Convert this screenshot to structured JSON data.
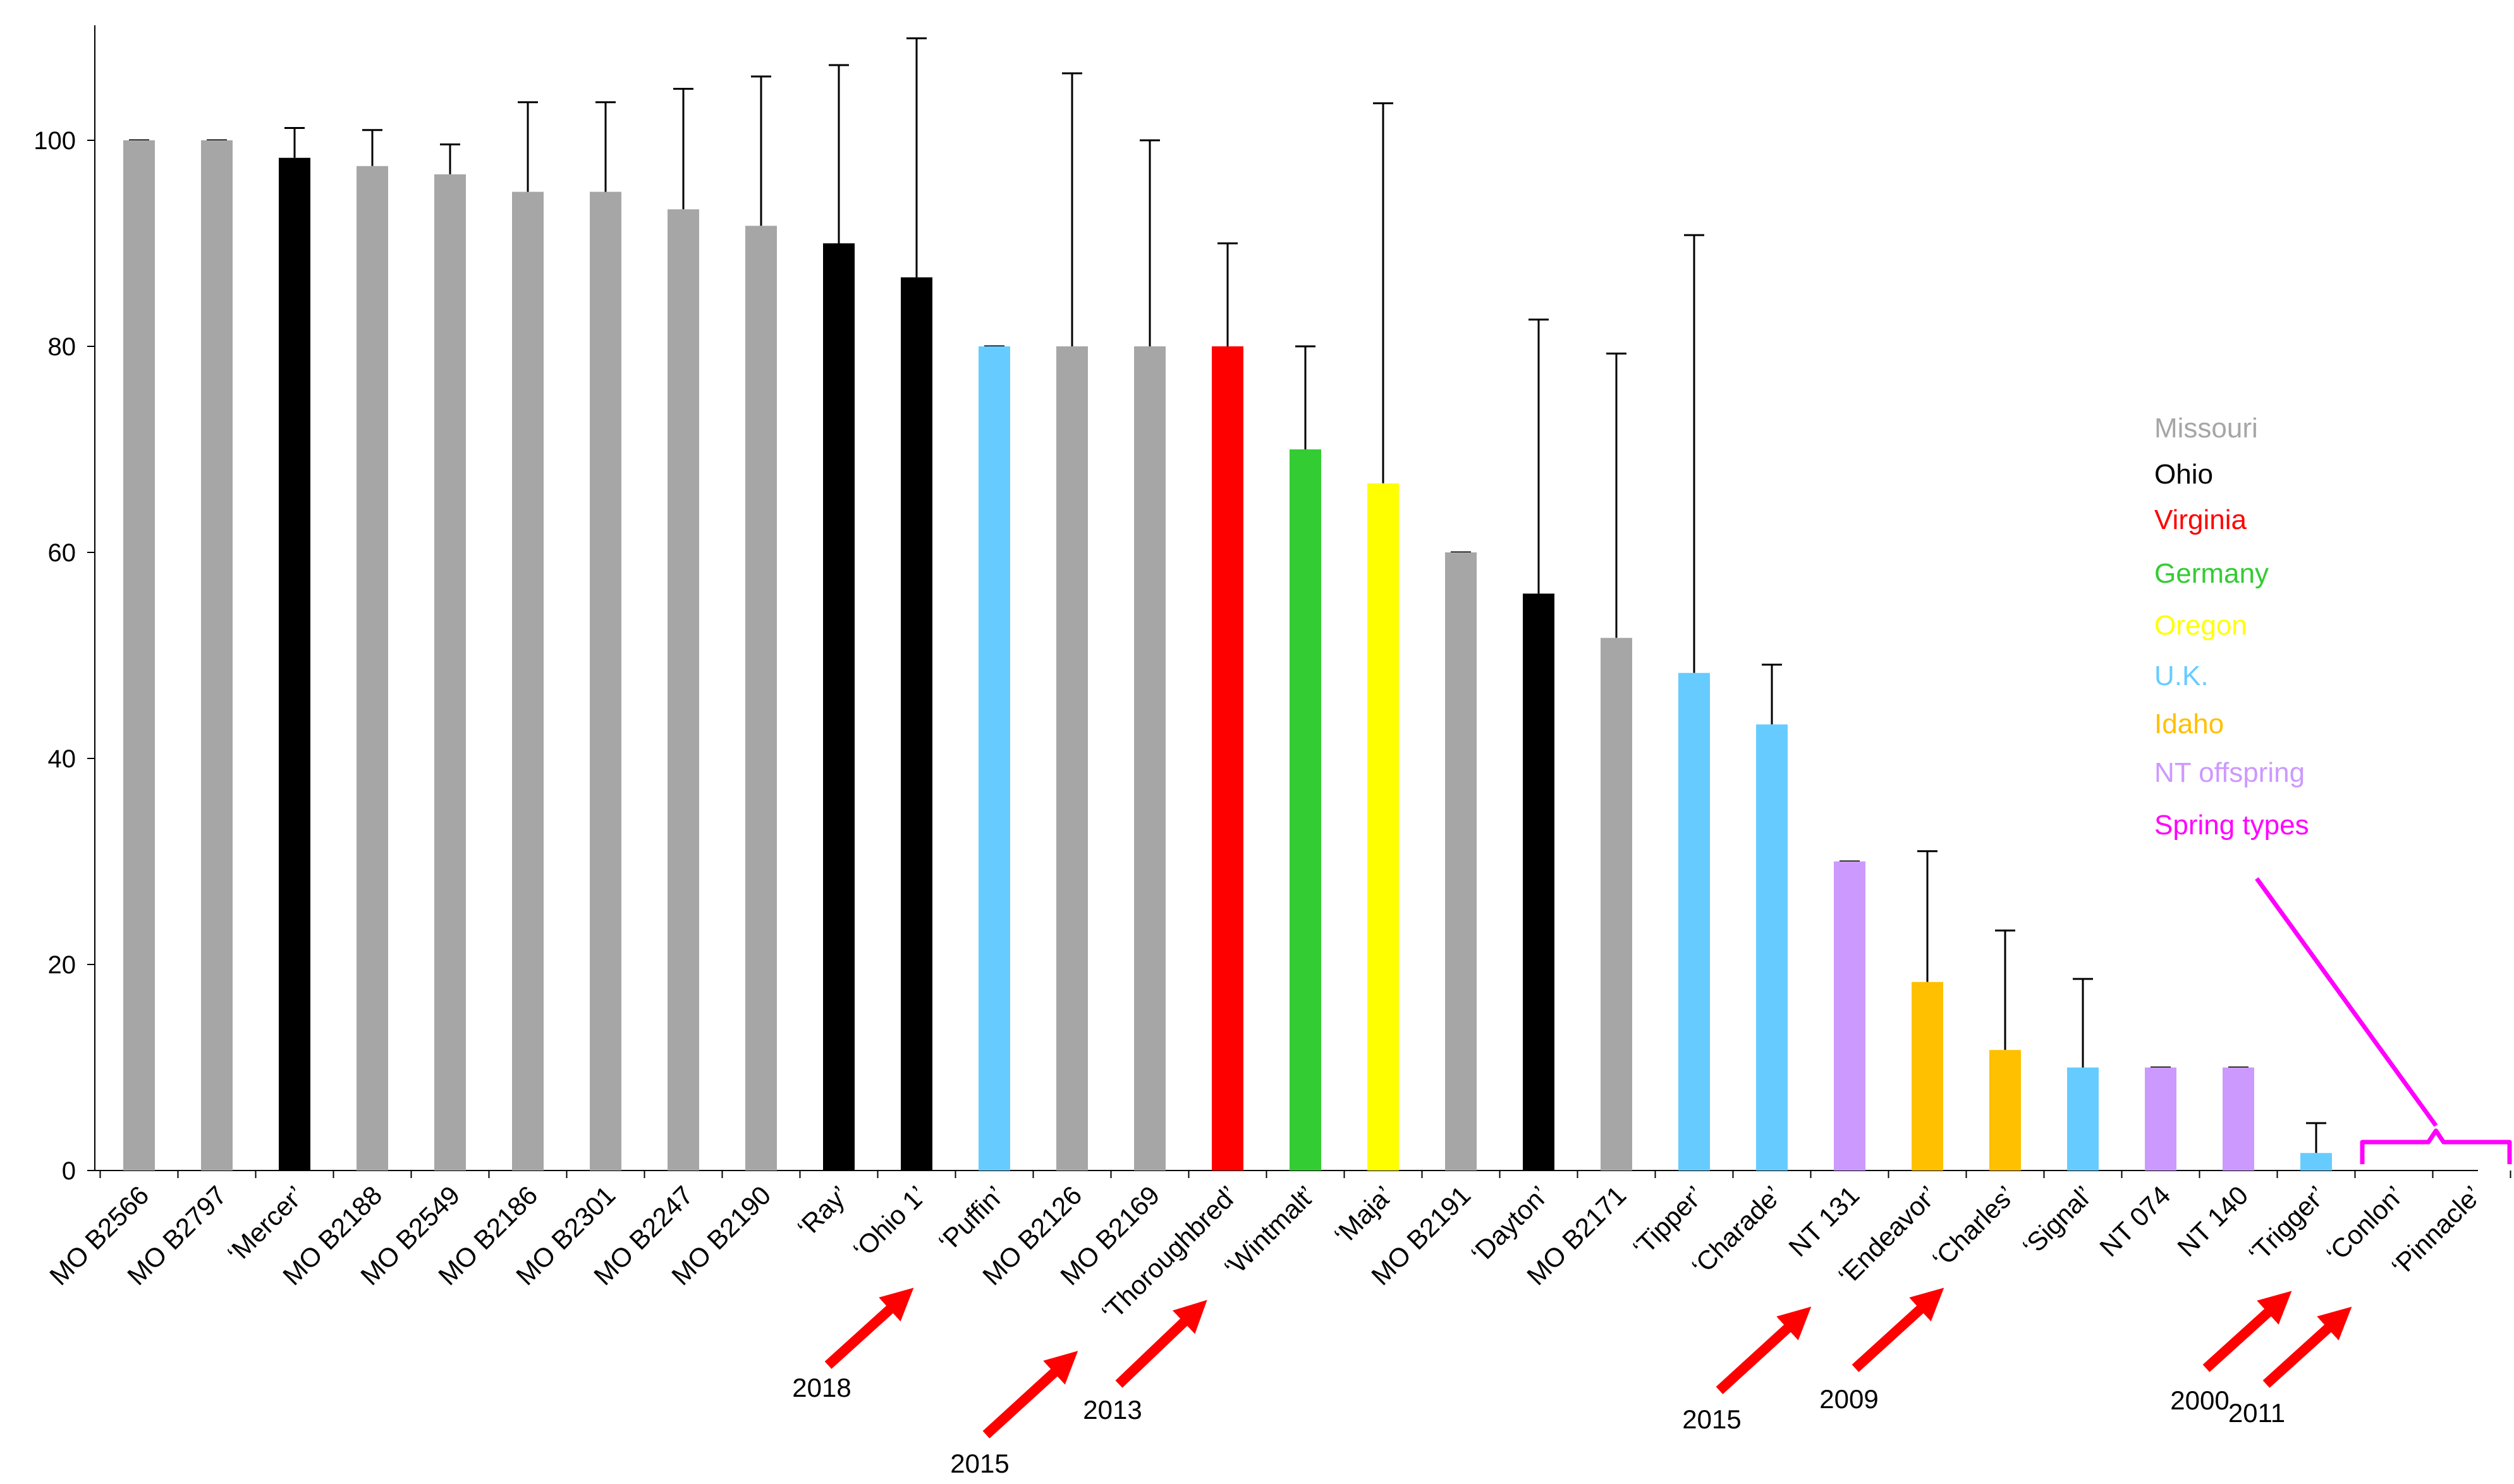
{
  "chart_data": {
    "type": "bar",
    "title": "",
    "xlabel": "",
    "ylabel": "",
    "ylim": [
      0,
      110
    ],
    "yticks": [
      "0",
      "20",
      "40",
      "60",
      "80",
      "100"
    ],
    "categories": [
      "MO B2566",
      "MO B2797",
      "‘Mercer’",
      "MO B2188",
      "MO B2549",
      "MO B2186",
      "MO B2301",
      "MO B2247",
      "MO B2190",
      "‘Ray’",
      "‘Ohio 1’",
      "‘Puffin’",
      "MO B2126",
      "MO B2169",
      "‘Thoroughbred’",
      "‘Wintmalt’",
      "‘Maja’",
      "MO B2191",
      "‘Dayton’",
      "MO B2171",
      "‘Tipper’",
      "‘Charade’",
      "NT 131",
      "‘Endeavor’",
      "‘Charles’",
      "‘Signal’",
      "NT 074",
      "NT 140",
      "‘Trigger’",
      "‘Conlon’",
      "‘Pinnacle’"
    ],
    "values": [
      100,
      100,
      98.3,
      97.5,
      96.7,
      95,
      95,
      93.3,
      91.7,
      90,
      86.7,
      80,
      80,
      80,
      80,
      70,
      66.7,
      60,
      56,
      51.7,
      48.3,
      43.3,
      30,
      18.3,
      11.7,
      10,
      10,
      10,
      1.7,
      0,
      0
    ],
    "errors": [
      0,
      0,
      2.9,
      3.5,
      2.9,
      8.7,
      8.7,
      11.7,
      14.5,
      17.3,
      23.2,
      0,
      26.5,
      20,
      10,
      10,
      36.9,
      0,
      26.6,
      27.6,
      42.5,
      5.8,
      0,
      12.7,
      11.6,
      8.6,
      0,
      0,
      2.9,
      0,
      0
    ],
    "groups": [
      "Missouri",
      "Missouri",
      "Ohio",
      "Missouri",
      "Missouri",
      "Missouri",
      "Missouri",
      "Missouri",
      "Missouri",
      "Ohio",
      "Ohio",
      "U.K.",
      "Missouri",
      "Missouri",
      "Virginia",
      "Germany",
      "Oregon",
      "Missouri",
      "Ohio",
      "Missouri",
      "U.K.",
      "U.K.",
      "NT offspring",
      "Idaho",
      "Idaho",
      "U.K.",
      "NT offspring",
      "NT offspring",
      "U.K.",
      "Spring types",
      "Spring types"
    ],
    "legend": [
      {
        "label": "Missouri",
        "color": "#a6a6a6"
      },
      {
        "label": "Ohio",
        "color": "#000000"
      },
      {
        "label": "Virginia",
        "color": "#ff0000"
      },
      {
        "label": "Germany",
        "color": "#33cc33"
      },
      {
        "label": "Oregon",
        "color": "#ffff00"
      },
      {
        "label": "U.K.",
        "color": "#66ccff"
      },
      {
        "label": "Idaho",
        "color": "#ffc000"
      },
      {
        "label": "NT offspring",
        "color": "#cc99ff"
      },
      {
        "label": "Spring types",
        "color": "#ff00ff"
      }
    ],
    "legend_position": "right",
    "annotations": [
      {
        "category": "‘Puffin’",
        "year": "2018"
      },
      {
        "category": "‘Thoroughbred’",
        "year": "2015"
      },
      {
        "category": "‘Wintmalt’",
        "year": "2013"
      },
      {
        "category": "‘Endeavor’",
        "year": "2015"
      },
      {
        "category": "‘Charles’",
        "year": "2009"
      },
      {
        "category": "‘Conlon’",
        "year": "2000"
      },
      {
        "category": "‘Pinnacle’",
        "year": "2011"
      }
    ],
    "arrow_color": "#ff0000"
  }
}
